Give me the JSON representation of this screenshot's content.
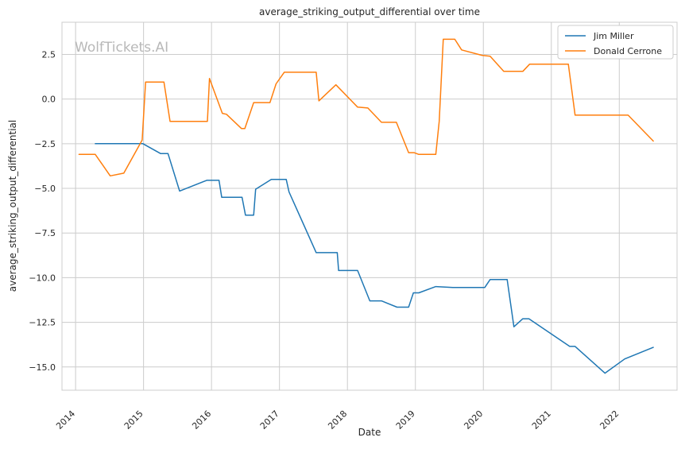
{
  "chart_data": {
    "type": "line",
    "title": "average_striking_output_differential over time",
    "xlabel": "Date",
    "ylabel": "average_striking_output_differential",
    "watermark": "WolfTickets.AI",
    "xlim": [
      2013.8,
      2022.85
    ],
    "ylim": [
      -16.3,
      4.3
    ],
    "x_ticks": [
      2014,
      2015,
      2016,
      2017,
      2018,
      2019,
      2020,
      2021,
      2022
    ],
    "y_ticks": [
      2.5,
      0.0,
      -2.5,
      -5.0,
      -7.5,
      -10.0,
      -12.5,
      -15.0
    ],
    "y_tick_labels": [
      "2.5",
      "0.0",
      "−2.5",
      "−5.0",
      "−7.5",
      "−10.0",
      "−12.5",
      "−15.0"
    ],
    "grid": true,
    "legend_position": "top-right",
    "series": [
      {
        "name": "Jim Miller",
        "color": "#1f77b4",
        "points": [
          [
            2014.29,
            -2.5
          ],
          [
            2014.99,
            -2.5
          ],
          [
            2015.25,
            -3.05
          ],
          [
            2015.36,
            -3.05
          ],
          [
            2015.53,
            -5.15
          ],
          [
            2015.93,
            -4.55
          ],
          [
            2016.11,
            -4.55
          ],
          [
            2016.15,
            -5.5
          ],
          [
            2016.45,
            -5.5
          ],
          [
            2016.5,
            -6.5
          ],
          [
            2016.62,
            -6.5
          ],
          [
            2016.65,
            -5.05
          ],
          [
            2016.88,
            -4.5
          ],
          [
            2017.1,
            -4.5
          ],
          [
            2017.14,
            -5.2
          ],
          [
            2017.54,
            -8.6
          ],
          [
            2017.85,
            -8.6
          ],
          [
            2017.87,
            -9.6
          ],
          [
            2018.15,
            -9.6
          ],
          [
            2018.33,
            -11.3
          ],
          [
            2018.5,
            -11.3
          ],
          [
            2018.73,
            -11.65
          ],
          [
            2018.9,
            -11.65
          ],
          [
            2018.97,
            -10.85
          ],
          [
            2019.05,
            -10.85
          ],
          [
            2019.3,
            -10.5
          ],
          [
            2019.55,
            -10.55
          ],
          [
            2020.02,
            -10.55
          ],
          [
            2020.1,
            -10.1
          ],
          [
            2020.35,
            -10.1
          ],
          [
            2020.45,
            -12.75
          ],
          [
            2020.58,
            -12.3
          ],
          [
            2020.67,
            -12.3
          ],
          [
            2021.27,
            -13.85
          ],
          [
            2021.35,
            -13.85
          ],
          [
            2021.79,
            -15.35
          ],
          [
            2022.08,
            -14.55
          ],
          [
            2022.5,
            -13.9
          ]
        ]
      },
      {
        "name": "Donald Cerrone",
        "color": "#ff7f0e",
        "points": [
          [
            2014.05,
            -3.1
          ],
          [
            2014.29,
            -3.1
          ],
          [
            2014.51,
            -4.3
          ],
          [
            2014.71,
            -4.15
          ],
          [
            2014.98,
            -2.3
          ],
          [
            2015.03,
            0.95
          ],
          [
            2015.3,
            0.95
          ],
          [
            2015.39,
            -1.25
          ],
          [
            2015.94,
            -1.25
          ],
          [
            2015.97,
            1.15
          ],
          [
            2016.16,
            -0.8
          ],
          [
            2016.22,
            -0.85
          ],
          [
            2016.44,
            -1.65
          ],
          [
            2016.49,
            -1.65
          ],
          [
            2016.62,
            -0.2
          ],
          [
            2016.86,
            -0.2
          ],
          [
            2016.95,
            0.85
          ],
          [
            2017.07,
            1.5
          ],
          [
            2017.54,
            1.5
          ],
          [
            2017.58,
            -0.1
          ],
          [
            2017.83,
            0.8
          ],
          [
            2018.15,
            -0.45
          ],
          [
            2018.3,
            -0.5
          ],
          [
            2018.5,
            -1.3
          ],
          [
            2018.72,
            -1.3
          ],
          [
            2018.9,
            -3.0
          ],
          [
            2018.98,
            -3.0
          ],
          [
            2019.05,
            -3.1
          ],
          [
            2019.3,
            -3.1
          ],
          [
            2019.35,
            -1.25
          ],
          [
            2019.41,
            3.35
          ],
          [
            2019.58,
            3.35
          ],
          [
            2019.68,
            2.75
          ],
          [
            2019.98,
            2.45
          ],
          [
            2020.1,
            2.4
          ],
          [
            2020.3,
            1.55
          ],
          [
            2020.58,
            1.55
          ],
          [
            2020.68,
            1.95
          ],
          [
            2021.25,
            1.95
          ],
          [
            2021.35,
            -0.9
          ],
          [
            2022.13,
            -0.9
          ],
          [
            2022.5,
            -2.35
          ]
        ]
      }
    ]
  }
}
